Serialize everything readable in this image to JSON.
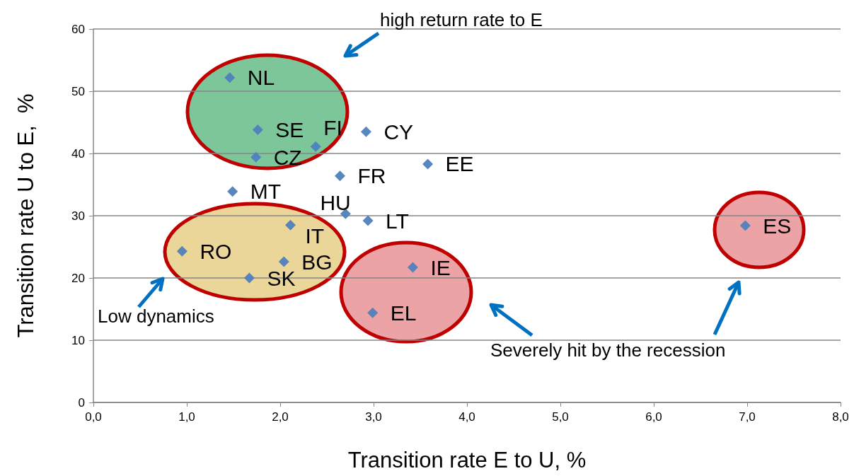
{
  "chart_data": {
    "type": "scatter",
    "xlabel": "Transition rate E to U, %",
    "ylabel": "Transition rate U to E,  %",
    "marker": "diamond",
    "grid": "y",
    "xlim": [
      0,
      8
    ],
    "xticks": [
      {
        "value": 0,
        "label": "0,0"
      },
      {
        "value": 1,
        "label": "1,0"
      },
      {
        "value": 2,
        "label": "2,0"
      },
      {
        "value": 3,
        "label": "3,0"
      },
      {
        "value": 4,
        "label": "4,0"
      },
      {
        "value": 5,
        "label": "5,0"
      },
      {
        "value": 6,
        "label": "6,0"
      },
      {
        "value": 7,
        "label": "7,0"
      },
      {
        "value": 8,
        "label": "8,0"
      }
    ],
    "ylim": [
      0,
      60
    ],
    "yticks": [
      0,
      10,
      20,
      30,
      40,
      50,
      60
    ],
    "series": [
      {
        "color": "#4f81bd",
        "x": [
          1.46,
          1.76,
          2.38,
          1.74,
          2.92,
          3.58,
          2.64,
          1.49,
          2.7,
          2.94,
          2.11,
          0.95,
          2.04,
          1.67,
          3.42,
          2.99,
          6.98
        ],
        "values": [
          52.2,
          43.8,
          41.1,
          39.4,
          43.5,
          38.3,
          36.4,
          33.9,
          30.3,
          29.2,
          28.5,
          24.3,
          22.6,
          20.0,
          21.7,
          14.4,
          28.4
        ]
      }
    ],
    "annotations": [
      {
        "text": "NL",
        "x": 1.46,
        "y": 52.2
      },
      {
        "text": "SE",
        "x": 1.76,
        "y": 43.8
      },
      {
        "text": "FI",
        "x": 2.38,
        "y": 41.1
      },
      {
        "text": "CZ",
        "x": 1.74,
        "y": 39.4
      },
      {
        "text": "CY",
        "x": 2.92,
        "y": 43.5
      },
      {
        "text": "EE",
        "x": 3.58,
        "y": 38.3
      },
      {
        "text": "FR",
        "x": 2.64,
        "y": 36.4
      },
      {
        "text": "MT",
        "x": 1.49,
        "y": 33.9
      },
      {
        "text": "HU",
        "x": 2.7,
        "y": 30.3
      },
      {
        "text": "LT",
        "x": 2.94,
        "y": 29.2
      },
      {
        "text": "IT",
        "x": 2.11,
        "y": 28.5
      },
      {
        "text": "RO",
        "x": 0.95,
        "y": 24.3
      },
      {
        "text": "BG",
        "x": 2.04,
        "y": 22.6
      },
      {
        "text": "SK",
        "x": 1.67,
        "y": 20.0
      },
      {
        "text": "IE",
        "x": 3.42,
        "y": 21.7
      },
      {
        "text": "EL",
        "x": 2.99,
        "y": 14.4
      },
      {
        "text": "ES",
        "x": 6.98,
        "y": 28.4
      },
      "high return rate to E",
      "Low dynamics",
      "Severely hit by the recession"
    ]
  }
}
